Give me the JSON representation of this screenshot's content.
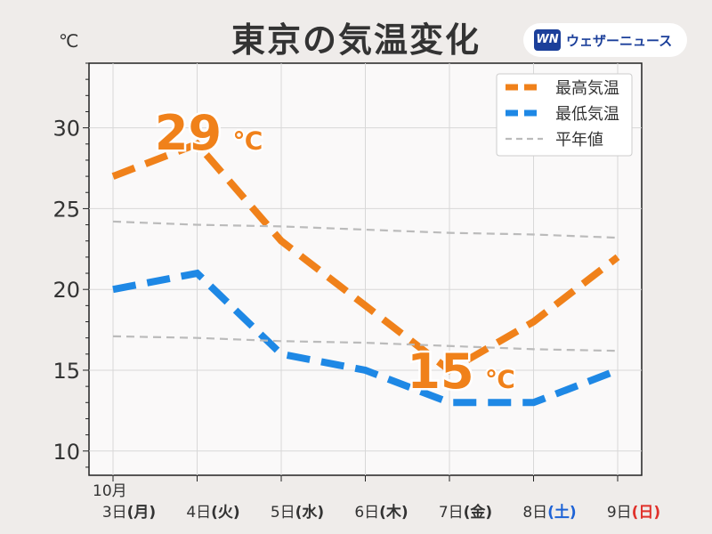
{
  "title": "東京の気温変化",
  "unit": "℃",
  "brand": {
    "logo": "WN",
    "name": "ウェザーニュース"
  },
  "chart_data": {
    "type": "line",
    "title": "東京の気温変化",
    "xlabel": "",
    "ylabel": "℃",
    "month_label": "10月",
    "categories": [
      "3日",
      "4日",
      "5日",
      "6日",
      "7日",
      "8日",
      "9日"
    ],
    "weekdays": [
      "(月)",
      "(火)",
      "(水)",
      "(木)",
      "(金)",
      "(土)",
      "(日)"
    ],
    "weekday_colors": [
      "#333333",
      "#333333",
      "#333333",
      "#333333",
      "#333333",
      "#1e63d6",
      "#e0312b"
    ],
    "ylim": [
      8.5,
      34
    ],
    "yticks": [
      10,
      15,
      20,
      25,
      30
    ],
    "grid": true,
    "legend_position": "top-right",
    "series": [
      {
        "name": "最高気温",
        "values": [
          27,
          29,
          23,
          19,
          15,
          18,
          22
        ],
        "color": "#f0811a",
        "style": "dashed-bold"
      },
      {
        "name": "最低気温",
        "values": [
          20,
          21,
          16,
          15,
          13,
          13,
          15
        ],
        "color": "#1e88e5",
        "style": "dashed-bold"
      },
      {
        "name": "平年値",
        "values": [
          24.2,
          24.0,
          23.9,
          23.7,
          23.5,
          23.4,
          23.2
        ],
        "color": "#bbbbbb",
        "style": "dashed-thin"
      },
      {
        "name": "平年値",
        "values": [
          17.1,
          17.0,
          16.8,
          16.7,
          16.5,
          16.3,
          16.2
        ],
        "color": "#bbbbbb",
        "style": "dashed-thin",
        "legend": false
      }
    ],
    "annotations": [
      {
        "text": "29",
        "unit": "℃",
        "category": "4日",
        "value": 29,
        "color": "#f0811a"
      },
      {
        "text": "15",
        "unit": "℃",
        "category": "7日",
        "value": 15,
        "color": "#f0811a"
      }
    ]
  }
}
